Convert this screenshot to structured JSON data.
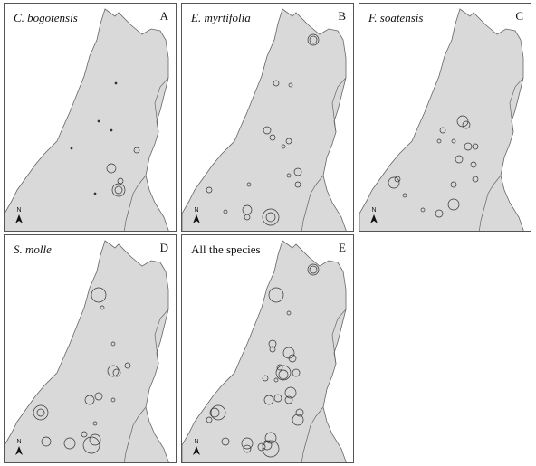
{
  "panels": [
    {
      "title": "C. bogotensis",
      "letter": "A",
      "italic": true
    },
    {
      "title": "E. myrtifolia",
      "letter": "B",
      "italic": true
    },
    {
      "title": "F. soatensis",
      "letter": "C",
      "italic": true
    },
    {
      "title": "S. molle",
      "letter": "D",
      "italic": true
    },
    {
      "title": "All the species",
      "letter": "E",
      "italic": false
    }
  ],
  "north_label": "N",
  "colors": {
    "land": "#d9d9d9",
    "outline": "#666666",
    "marker": "#333333",
    "background": "#ffffff"
  }
}
